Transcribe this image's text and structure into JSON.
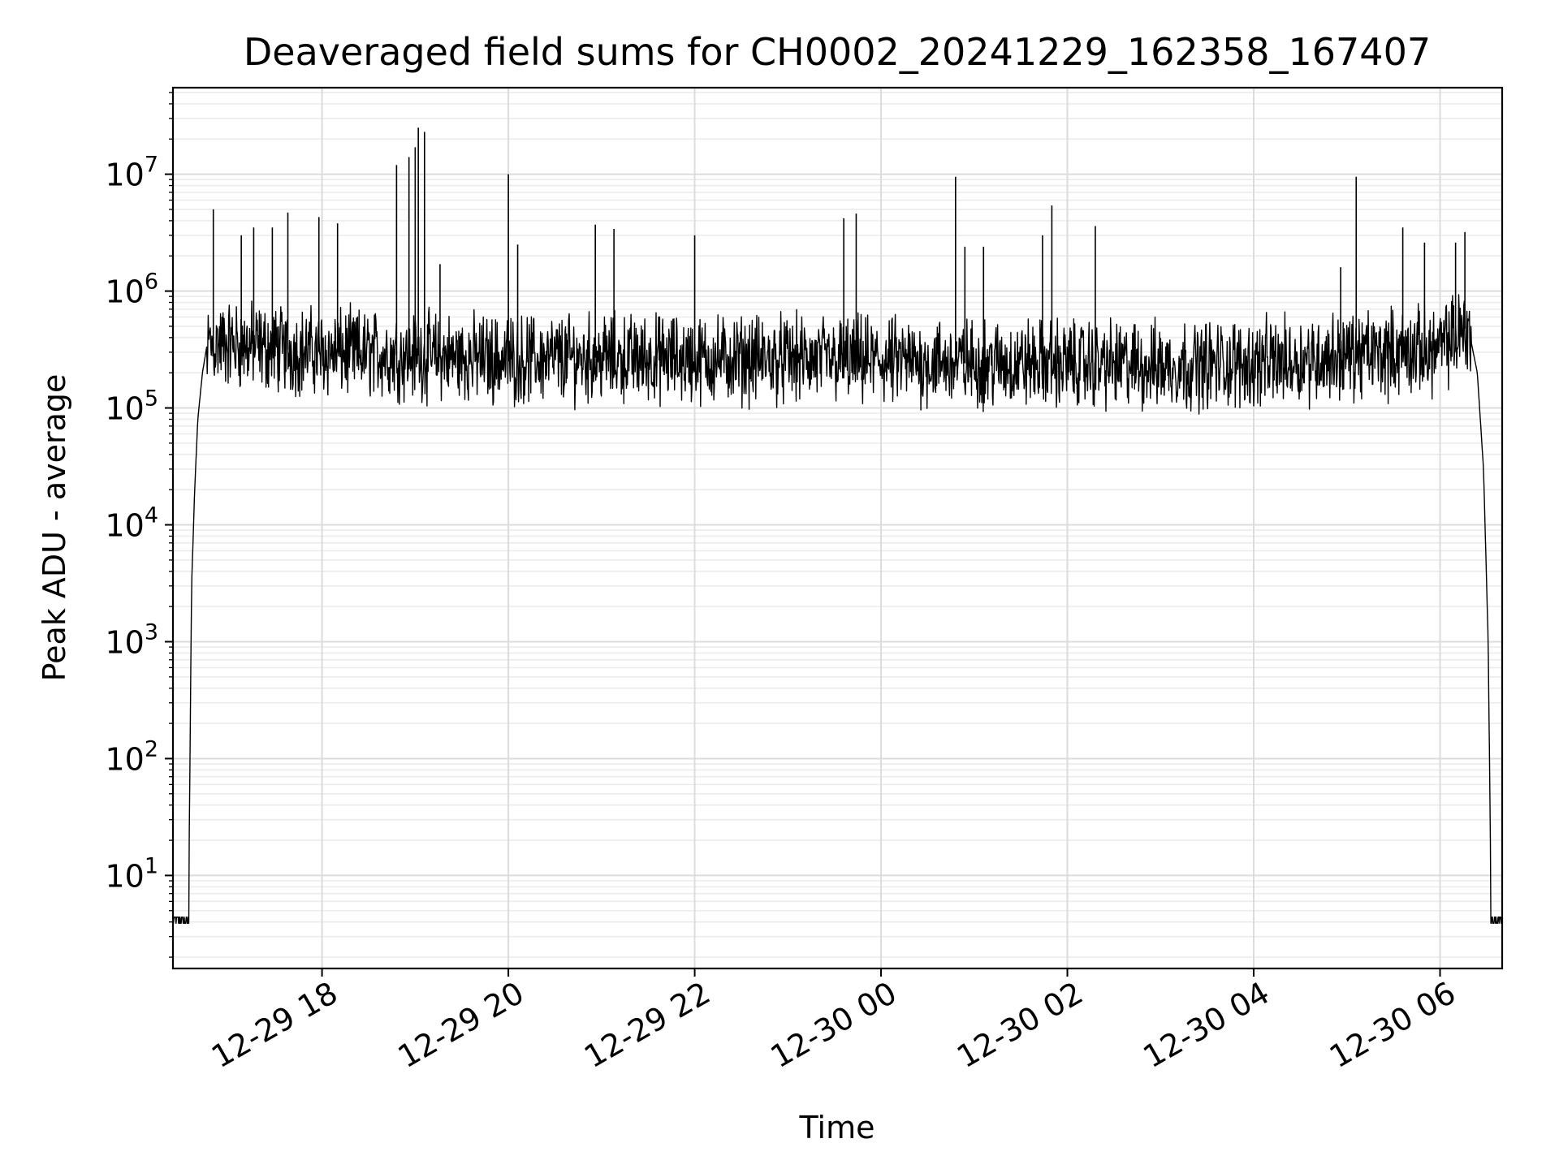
{
  "chart_data": {
    "type": "line",
    "title": "Deaveraged field sums for CH0002_20241229_162358_167407",
    "xlabel": "Time",
    "ylabel": "Peak ADU - average",
    "yscale": "log",
    "ylim": [
      1.6,
      55000000
    ],
    "xlim": [
      "2024-12-29 16:24",
      "2024-12-30 06:40"
    ],
    "grid": "on (major and minor)",
    "line_color": "#000000",
    "x_ticks": [
      {
        "label": "12-29 18",
        "time": "2024-12-29 18:00"
      },
      {
        "label": "12-29 20",
        "time": "2024-12-29 20:00"
      },
      {
        "label": "12-29 22",
        "time": "2024-12-29 22:00"
      },
      {
        "label": "12-30 00",
        "time": "2024-12-30 00:00"
      },
      {
        "label": "12-30 02",
        "time": "2024-12-30 02:00"
      },
      {
        "label": "12-30 04",
        "time": "2024-12-30 04:00"
      },
      {
        "label": "12-30 06",
        "time": "2024-12-30 06:00"
      }
    ],
    "y_ticks": [
      {
        "base": "10",
        "exp": "1",
        "value": 10
      },
      {
        "base": "10",
        "exp": "2",
        "value": 100
      },
      {
        "base": "10",
        "exp": "3",
        "value": 1000
      },
      {
        "base": "10",
        "exp": "4",
        "value": 10000
      },
      {
        "base": "10",
        "exp": "5",
        "value": 100000
      },
      {
        "base": "10",
        "exp": "6",
        "value": 1000000
      },
      {
        "base": "10",
        "exp": "7",
        "value": 10000000
      }
    ],
    "series": [
      {
        "points": [
          {
            "x": "2024-12-29 16:24",
            "y": 4
          },
          {
            "x": "2024-12-29 16:34",
            "y": 4
          },
          {
            "x": "2024-12-29 16:36",
            "y": 3000
          },
          {
            "x": "2024-12-29 16:38",
            "y": 20000
          },
          {
            "x": "2024-12-29 16:40",
            "y": 80000
          },
          {
            "x": "2024-12-29 16:43",
            "y": 200000
          },
          {
            "x": "2024-12-29 16:46",
            "y": 350000
          },
          {
            "x": "2024-12-29 17:00",
            "y": 350000
          },
          {
            "x": "2024-12-29 17:30",
            "y": 320000
          },
          {
            "x": "2024-12-29 18:00",
            "y": 300000
          },
          {
            "x": "2024-12-29 19:00",
            "y": 280000
          },
          {
            "x": "2024-12-29 20:00",
            "y": 260000
          },
          {
            "x": "2024-12-29 21:00",
            "y": 270000
          },
          {
            "x": "2024-12-29 22:00",
            "y": 260000
          },
          {
            "x": "2024-12-29 23:00",
            "y": 260000
          },
          {
            "x": "2024-12-30 00:00",
            "y": 250000
          },
          {
            "x": "2024-12-30 01:00",
            "y": 240000
          },
          {
            "x": "2024-12-30 02:00",
            "y": 240000
          },
          {
            "x": "2024-12-30 03:00",
            "y": 230000
          },
          {
            "x": "2024-12-30 04:00",
            "y": 240000
          },
          {
            "x": "2024-12-30 05:00",
            "y": 280000
          },
          {
            "x": "2024-12-30 06:00",
            "y": 320000
          },
          {
            "x": "2024-12-30 06:18",
            "y": 500000
          },
          {
            "x": "2024-12-30 06:24",
            "y": 200000
          },
          {
            "x": "2024-12-30 06:28",
            "y": 30000
          },
          {
            "x": "2024-12-30 06:31",
            "y": 1000
          },
          {
            "x": "2024-12-30 06:33",
            "y": 4
          },
          {
            "x": "2024-12-30 06:40",
            "y": 4
          }
        ],
        "noise_band": {
          "from": "2024-12-29 16:46",
          "to": "2024-12-30 06:20",
          "low": 110000,
          "high": 800000
        },
        "spikes": [
          {
            "x": "2024-12-29 16:50",
            "y": 5000000
          },
          {
            "x": "2024-12-29 17:08",
            "y": 3000000
          },
          {
            "x": "2024-12-29 17:16",
            "y": 3500000
          },
          {
            "x": "2024-12-29 17:28",
            "y": 3500000
          },
          {
            "x": "2024-12-29 17:38",
            "y": 4700000
          },
          {
            "x": "2024-12-29 17:58",
            "y": 4300000
          },
          {
            "x": "2024-12-29 18:10",
            "y": 3800000
          },
          {
            "x": "2024-12-29 18:48",
            "y": 12000000
          },
          {
            "x": "2024-12-29 18:56",
            "y": 14000000
          },
          {
            "x": "2024-12-29 19:00",
            "y": 17000000
          },
          {
            "x": "2024-12-29 19:02",
            "y": 25000000
          },
          {
            "x": "2024-12-29 19:06",
            "y": 23000000
          },
          {
            "x": "2024-12-29 19:16",
            "y": 1700000
          },
          {
            "x": "2024-12-29 20:00",
            "y": 10000000
          },
          {
            "x": "2024-12-29 20:06",
            "y": 2500000
          },
          {
            "x": "2024-12-29 20:56",
            "y": 3700000
          },
          {
            "x": "2024-12-29 21:08",
            "y": 3400000
          },
          {
            "x": "2024-12-29 22:00",
            "y": 3000000
          },
          {
            "x": "2024-12-29 23:36",
            "y": 4200000
          },
          {
            "x": "2024-12-29 23:44",
            "y": 4600000
          },
          {
            "x": "2024-12-30 00:48",
            "y": 9500000
          },
          {
            "x": "2024-12-30 00:54",
            "y": 2400000
          },
          {
            "x": "2024-12-30 01:06",
            "y": 2400000
          },
          {
            "x": "2024-12-30 01:44",
            "y": 3000000
          },
          {
            "x": "2024-12-30 01:50",
            "y": 5400000
          },
          {
            "x": "2024-12-30 02:18",
            "y": 3600000
          },
          {
            "x": "2024-12-30 04:56",
            "y": 1600000
          },
          {
            "x": "2024-12-30 05:06",
            "y": 9500000
          },
          {
            "x": "2024-12-30 05:36",
            "y": 3500000
          },
          {
            "x": "2024-12-30 05:50",
            "y": 2600000
          },
          {
            "x": "2024-12-30 06:10",
            "y": 2600000
          },
          {
            "x": "2024-12-30 06:16",
            "y": 3200000
          }
        ]
      }
    ]
  }
}
